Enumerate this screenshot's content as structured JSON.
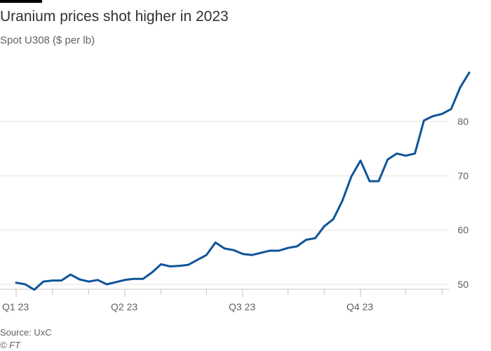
{
  "title": "Uranium prices shot higher in 2023",
  "subtitle": "Spot U308 ($ per lb)",
  "source": "Source: UxC",
  "credit": "© FT",
  "colors": {
    "line": "#0f5499",
    "grid": "#e9e5e0",
    "axis": "#ccc1b7"
  },
  "chart_data": {
    "type": "line",
    "x_unit": "weekly observations, 2023",
    "ylim": [
      50,
      90
    ],
    "yticks": [
      50,
      60,
      70,
      80
    ],
    "y_axis_side": "right",
    "grid": true,
    "xticks_major": [
      {
        "index": 0,
        "label": "Q1 23"
      },
      {
        "index": 12,
        "label": "Q2 23"
      },
      {
        "index": 25,
        "label": "Q3 23"
      },
      {
        "index": 38,
        "label": "Q4 23"
      }
    ],
    "xticks_minor": [
      4,
      8,
      16,
      21,
      30,
      34,
      43,
      47
    ],
    "values": [
      50.3,
      50.0,
      49.0,
      50.5,
      50.7,
      50.7,
      51.8,
      50.9,
      50.5,
      50.8,
      50.0,
      50.4,
      50.8,
      51.0,
      51.0,
      52.2,
      53.7,
      53.3,
      53.4,
      53.6,
      54.5,
      55.4,
      57.7,
      56.6,
      56.3,
      55.6,
      55.4,
      55.8,
      56.2,
      56.2,
      56.7,
      57.0,
      58.2,
      58.5,
      60.7,
      62.0,
      65.4,
      69.9,
      72.8,
      69.0,
      69.0,
      73.0,
      74.1,
      73.7,
      74.1,
      80.2,
      81.0,
      81.4,
      82.3,
      86.3,
      89.0
    ]
  }
}
